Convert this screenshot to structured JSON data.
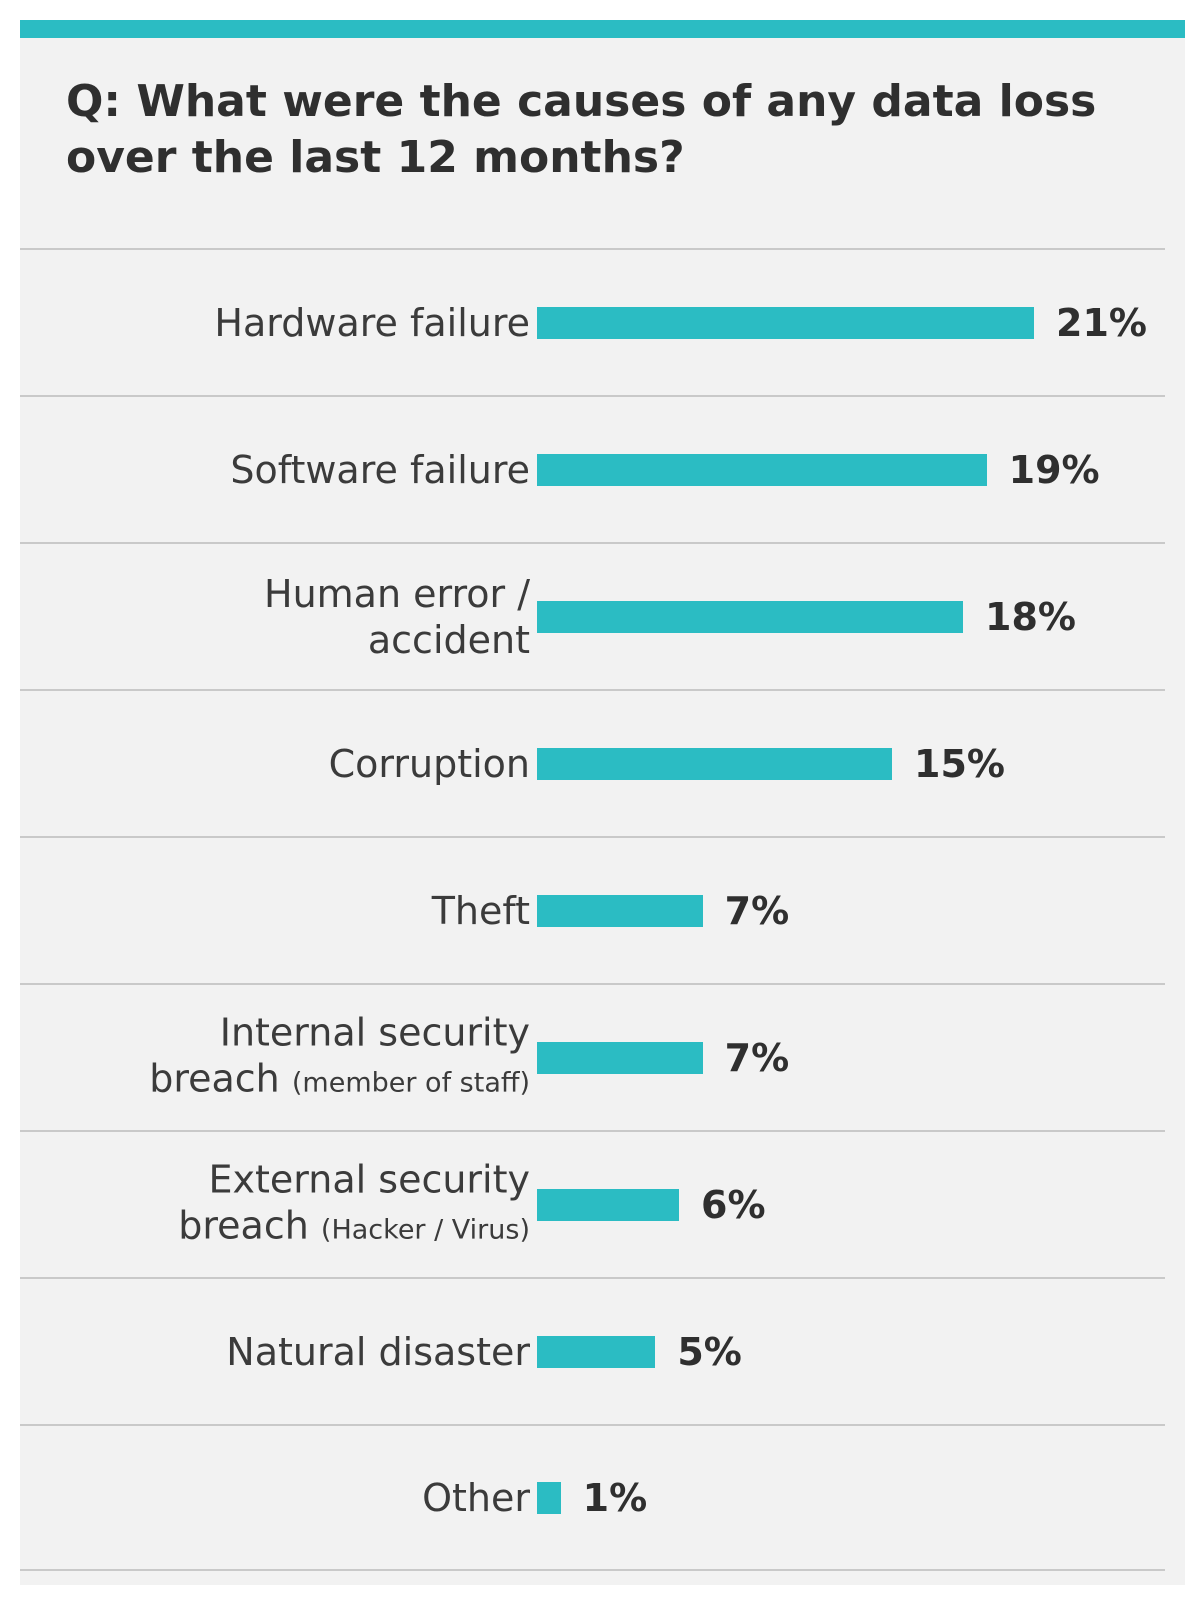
{
  "title": "Q: What were the causes of any data loss over the last 12 months?",
  "colors": {
    "bar": "#2bbcc3",
    "background": "#f2f2f2",
    "divider": "#c9c9c9",
    "text": "#3b3b3b"
  },
  "chart_data": {
    "type": "bar",
    "orientation": "horizontal",
    "title": "Q: What were the causes of any data loss over the last 12 months?",
    "categories": [
      "Hardware failure",
      "Software failure",
      "Human error / accident",
      "Corruption",
      "Theft",
      "Internal security breach (member of staff)",
      "External security breach (Hacker / Virus)",
      "Natural disaster",
      "Other"
    ],
    "values": [
      21,
      19,
      18,
      15,
      7,
      7,
      6,
      5,
      1
    ],
    "value_labels": [
      "21%",
      "19%",
      "18%",
      "15%",
      "7%",
      "7%",
      "6%",
      "5%",
      "1%"
    ],
    "xlim": [
      0,
      21
    ],
    "grid": false,
    "legend": "none"
  },
  "rows": [
    {
      "lines": [
        "Hardware failure"
      ],
      "small": "",
      "value": "21%"
    },
    {
      "lines": [
        "Software failure"
      ],
      "small": "",
      "value": "19%"
    },
    {
      "lines": [
        "Human error /",
        "accident"
      ],
      "small": "",
      "value": "18%"
    },
    {
      "lines": [
        "Corruption"
      ],
      "small": "",
      "value": "15%"
    },
    {
      "lines": [
        "Theft"
      ],
      "small": "",
      "value": "7%"
    },
    {
      "lines": [
        "Internal security",
        "breach"
      ],
      "small": "(member of staff)",
      "value": "7%"
    },
    {
      "lines": [
        "External security",
        "breach"
      ],
      "small": "(Hacker / Virus)",
      "value": "6%"
    },
    {
      "lines": [
        "Natural disaster"
      ],
      "small": "",
      "value": "5%"
    },
    {
      "lines": [
        "Other"
      ],
      "small": "",
      "value": "1%"
    }
  ]
}
